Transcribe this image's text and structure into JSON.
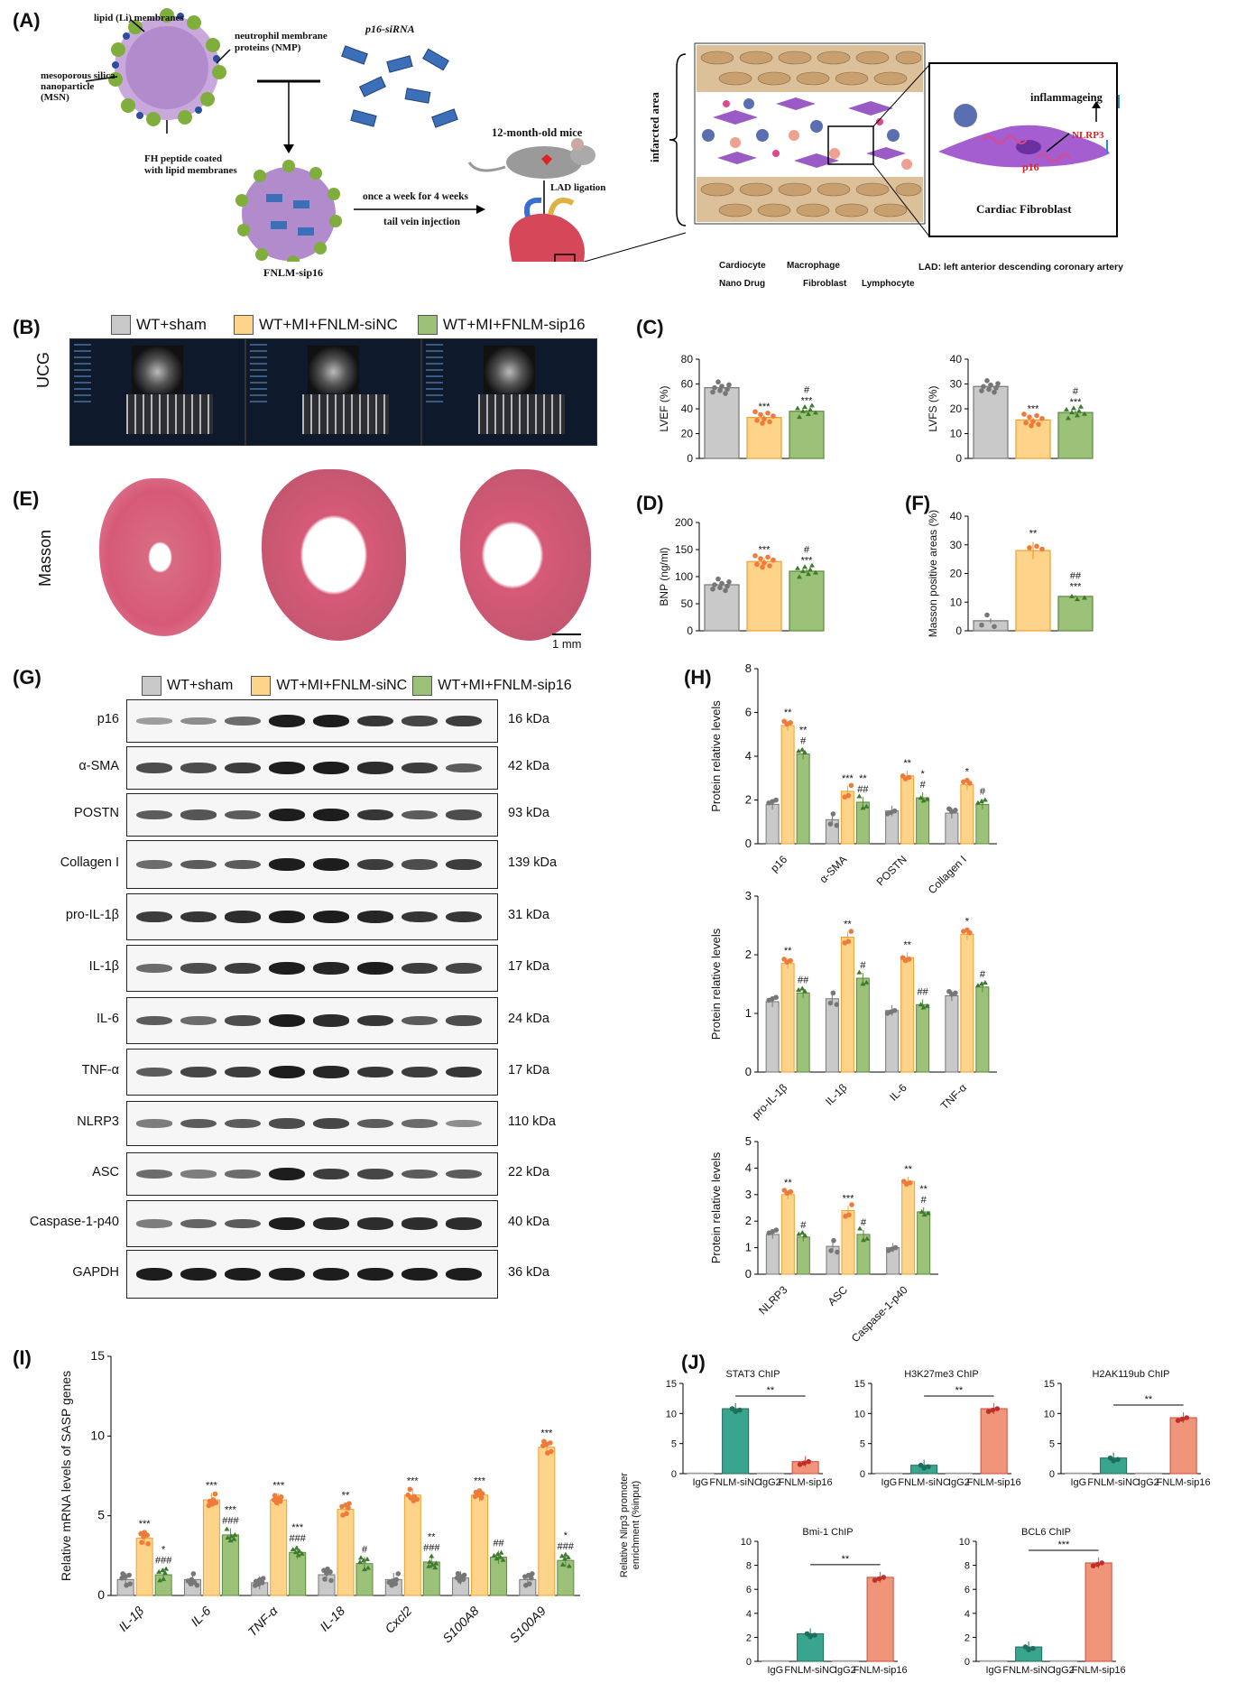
{
  "panels": {
    "A": "(A)",
    "B": "(B)",
    "C": "(C)",
    "D": "(D)",
    "E": "(E)",
    "F": "(F)",
    "G": "(G)",
    "H": "(H)",
    "I": "(I)",
    "J": "(J)"
  },
  "schematic": {
    "lipid": "lipid (Li) membranes",
    "nmp": "neutrophil membrane\nproteins (NMP)",
    "msn": "mesoporous silica\nnanoparticle\n(MSN)",
    "fh": "FH peptide coated\nwith lipid membranes",
    "sirna": "p16-siRNA",
    "fnlm": "FNLM-sip16",
    "mice": "12-month-old mice",
    "lad_lig": "LAD ligation",
    "dose": "once a week for 4 weeks",
    "route": "tail vein injection",
    "infarct": "infarcted area",
    "inflamm": "inflammageing",
    "nlrp3": "NLRP3",
    "p16": "p16",
    "cf": "Cardiac  Fibroblast",
    "leg_cardio": "Cardiocyte",
    "leg_macro": "Macrophage",
    "leg_nano": "Nano Drug",
    "leg_fibro": "Fibroblast",
    "leg_lympho": "Lymphocyte",
    "lad_def": "LAD: left anterior descending coronary artery"
  },
  "groups": [
    "WT+sham",
    "WT+MI+FNLM-siNC",
    "WT+MI+FNLM-sip16"
  ],
  "colors": {
    "sham": "#c9c9c9",
    "sinc": "#fdd48a",
    "sip16": "#9cc27a",
    "sham_edge": "#777",
    "sinc_edge": "#f0a030",
    "sip16_edge": "#5a8a3c",
    "teal": "#3aa58e",
    "salmon": "#f0957a",
    "pt_sham": "#777",
    "pt_sinc": "#f07a3a",
    "pt_sip16": "#3e7a2e"
  },
  "rowlabels": {
    "ucg": "UCG",
    "masson": "Masson",
    "scale": "1 mm"
  },
  "chart_data": [
    {
      "id": "C1",
      "type": "bar",
      "ylabel": "LVEF (%)",
      "ylim": [
        0,
        80
      ],
      "ticks": [
        0,
        20,
        40,
        60,
        80
      ],
      "values": [
        57,
        33,
        38
      ],
      "errors": [
        1.5,
        1.8,
        1.5
      ],
      "stars": [
        "",
        "***",
        "#\n***"
      ]
    },
    {
      "id": "C2",
      "type": "bar",
      "ylabel": "LVFS (%)",
      "ylim": [
        0,
        40
      ],
      "ticks": [
        0,
        10,
        20,
        30,
        40
      ],
      "values": [
        29,
        15.5,
        18.5
      ],
      "errors": [
        1,
        1,
        0.8
      ],
      "stars": [
        "",
        "***",
        "#\n***"
      ]
    },
    {
      "id": "D",
      "type": "bar",
      "ylabel": "BNP (ng/ml)",
      "ylim": [
        0,
        200
      ],
      "ticks": [
        0,
        50,
        100,
        150,
        200
      ],
      "values": [
        85,
        128,
        110
      ],
      "errors": [
        3,
        6,
        4
      ],
      "stars": [
        "",
        "***",
        "#\n***"
      ]
    },
    {
      "id": "F",
      "type": "bar",
      "ylabel": "Masson positive areas (%)",
      "ylim": [
        0,
        40
      ],
      "ticks": [
        0,
        10,
        20,
        30,
        40
      ],
      "values": [
        3.5,
        28,
        12
      ],
      "errors": [
        0.8,
        3,
        0.4
      ],
      "stars": [
        "",
        "**",
        "##\n***"
      ]
    },
    {
      "id": "H1",
      "type": "bar",
      "ylabel": "Protein relative levels",
      "ylim": [
        0,
        8
      ],
      "ticks": [
        0,
        2,
        4,
        6,
        8
      ],
      "categories": [
        "p16",
        "α-SMA",
        "POSTN",
        "Collagen I"
      ],
      "series": [
        {
          "name": "WT+sham",
          "values": [
            1.8,
            1.1,
            1.5,
            1.4
          ]
        },
        {
          "name": "WT+MI+FNLM-siNC",
          "values": [
            5.4,
            2.4,
            3.1,
            2.7
          ]
        },
        {
          "name": "WT+MI+FNLM-sip16",
          "values": [
            4.1,
            1.9,
            2.1,
            1.8
          ]
        }
      ],
      "stars": [
        [
          "**",
          "**\n#"
        ],
        [
          "***",
          "**\n##"
        ],
        [
          "**",
          "*\n#"
        ],
        [
          "*",
          "#"
        ]
      ]
    },
    {
      "id": "H2",
      "type": "bar",
      "ylabel": "Protein relative levels",
      "ylim": [
        0,
        3
      ],
      "ticks": [
        0,
        1,
        2,
        3
      ],
      "categories": [
        "pro-IL-1β",
        "IL-1β",
        "IL-6",
        "TNF-α"
      ],
      "series": [
        {
          "name": "WT+sham",
          "values": [
            1.2,
            1.25,
            1.05,
            1.3
          ]
        },
        {
          "name": "WT+MI+FNLM-siNC",
          "values": [
            1.85,
            2.3,
            1.95,
            2.35
          ]
        },
        {
          "name": "WT+MI+FNLM-sip16",
          "values": [
            1.35,
            1.6,
            1.15,
            1.45
          ]
        }
      ],
      "stars": [
        [
          "**",
          "##"
        ],
        [
          "**",
          "#"
        ],
        [
          "**",
          "##"
        ],
        [
          "*",
          "#"
        ]
      ]
    },
    {
      "id": "H3",
      "type": "bar",
      "ylabel": "Protein relative levels",
      "ylim": [
        0,
        5
      ],
      "ticks": [
        0,
        1,
        2,
        3,
        4,
        5
      ],
      "categories": [
        "NLRP3",
        "ASC",
        "Caspase-1-p40"
      ],
      "series": [
        {
          "name": "WT+sham",
          "values": [
            1.5,
            1.05,
            1.0
          ]
        },
        {
          "name": "WT+MI+FNLM-siNC",
          "values": [
            3.0,
            2.4,
            3.5
          ]
        },
        {
          "name": "WT+MI+FNLM-sip16",
          "values": [
            1.4,
            1.5,
            2.35
          ]
        }
      ],
      "stars": [
        [
          "**",
          "#"
        ],
        [
          "***",
          "#"
        ],
        [
          "**",
          "**\n#"
        ]
      ]
    },
    {
      "id": "I",
      "type": "bar",
      "ylabel": "Relative mRNA levels of SASP genes",
      "ylim": [
        0,
        15
      ],
      "ticks": [
        0,
        5,
        10,
        15
      ],
      "categories": [
        "IL-1β",
        "IL-6",
        "TNF-α",
        "IL-18",
        "Cxcl2",
        "S100A8",
        "S100A9"
      ],
      "series": [
        {
          "name": "WT+sham",
          "values": [
            1.0,
            1.0,
            0.8,
            1.3,
            1.0,
            1.1,
            1.0
          ]
        },
        {
          "name": "WT+MI+FNLM-siNC",
          "values": [
            3.6,
            6.0,
            6.0,
            5.4,
            6.3,
            6.3,
            9.3
          ]
        },
        {
          "name": "WT+MI+FNLM-sip16",
          "values": [
            1.3,
            3.8,
            2.7,
            2.0,
            2.1,
            2.4,
            2.2
          ]
        }
      ],
      "stars": [
        [
          "***",
          "*\n###"
        ],
        [
          "***",
          "***\n###"
        ],
        [
          "***",
          "***\n###"
        ],
        [
          "**",
          "#"
        ],
        [
          "***",
          "**\n###"
        ],
        [
          "***",
          "##"
        ],
        [
          "***",
          "*\n###"
        ]
      ]
    },
    {
      "id": "J1",
      "type": "bar",
      "title": "STAT3 ChIP",
      "ylim": [
        0,
        15
      ],
      "ticks": [
        0,
        5,
        10,
        15
      ],
      "categories": [
        "IgG",
        "FNLM-siNC",
        "IgG2",
        "FNLM-sip16"
      ],
      "values": [
        0.1,
        10.8,
        0.1,
        2.0
      ],
      "sig": "**",
      "sigspan": [
        1,
        3
      ]
    },
    {
      "id": "J2",
      "type": "bar",
      "title": "H3K27me3 ChIP",
      "ylim": [
        0,
        15
      ],
      "ticks": [
        0,
        5,
        10,
        15
      ],
      "categories": [
        "IgG",
        "FNLM-siNC",
        "IgG2",
        "FNLM-sip16"
      ],
      "values": [
        0.1,
        1.4,
        0.1,
        10.8
      ],
      "sig": "**",
      "sigspan": [
        1,
        3
      ]
    },
    {
      "id": "J3",
      "type": "bar",
      "title": "H2AK119ub ChIP",
      "ylim": [
        0,
        15
      ],
      "ticks": [
        0,
        5,
        10,
        15
      ],
      "categories": [
        "IgG",
        "FNLM-siNC",
        "IgG2",
        "FNLM-sip16"
      ],
      "values": [
        0.1,
        2.6,
        0.1,
        9.3
      ],
      "sig": "**",
      "sigspan": [
        1,
        3
      ]
    },
    {
      "id": "J4",
      "type": "bar",
      "title": "Bmi-1 ChIP",
      "ylim": [
        0,
        10
      ],
      "ticks": [
        0,
        2,
        4,
        6,
        8,
        10
      ],
      "categories": [
        "IgG",
        "FNLM-siNC",
        "IgG2",
        "FNLM-sip16"
      ],
      "values": [
        0.05,
        2.3,
        0.05,
        7.0
      ],
      "sig": "**",
      "sigspan": [
        1,
        3
      ]
    },
    {
      "id": "J5",
      "type": "bar",
      "title": "BCL6 ChIP",
      "ylim": [
        0,
        10
      ],
      "ticks": [
        0,
        2,
        4,
        6,
        8,
        10
      ],
      "categories": [
        "IgG",
        "FNLM-siNC",
        "IgG2",
        "FNLM-sip16"
      ],
      "values": [
        0.05,
        1.2,
        0.05,
        8.2
      ],
      "sig": "***",
      "sigspan": [
        1,
        3
      ]
    }
  ],
  "J_ylabel": "Relative Nlrp3 promoter\nenrichment (%input)",
  "blot": {
    "rows": [
      {
        "name": "p16",
        "kda": "16 kDa"
      },
      {
        "name": "α-SMA",
        "kda": "42 kDa"
      },
      {
        "name": "POSTN",
        "kda": "93 kDa"
      },
      {
        "name": "Collagen I",
        "kda": "139 kDa"
      },
      {
        "name": "pro-IL-1β",
        "kda": "31 kDa"
      },
      {
        "name": "IL-1β",
        "kda": "17 kDa"
      },
      {
        "name": "IL-6",
        "kda": "24 kDa"
      },
      {
        "name": "TNF-α",
        "kda": "17 kDa"
      },
      {
        "name": "NLRP3",
        "kda": "110 kDa"
      },
      {
        "name": "ASC",
        "kda": "22 kDa"
      },
      {
        "name": "Caspase-1-p40",
        "kda": "40 kDa"
      },
      {
        "name": "GAPDH",
        "kda": "36 kDa"
      }
    ]
  }
}
